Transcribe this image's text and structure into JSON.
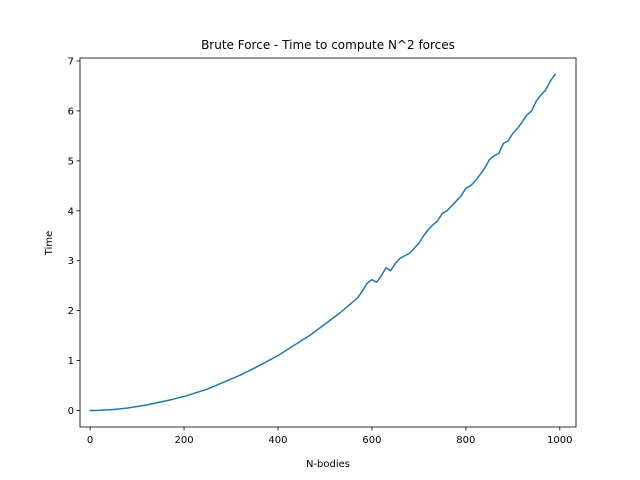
{
  "chart_data": {
    "type": "line",
    "title": "Brute Force - Time to compute N^2 forces",
    "xlabel": "N-bodies",
    "ylabel": "Time",
    "xlim": [
      -21.5,
      1034.5
    ],
    "ylim": [
      -0.33,
      7.06
    ],
    "x_ticks": [
      0,
      200,
      400,
      600,
      800,
      1000
    ],
    "y_ticks": [
      0,
      1,
      2,
      3,
      4,
      5,
      6,
      7
    ],
    "grid": false,
    "legend": "none",
    "line_color": "#1f77b4",
    "series": [
      {
        "x": [
          0,
          10,
          20,
          30,
          40,
          50,
          60,
          70,
          80,
          90,
          100,
          110,
          120,
          130,
          140,
          150,
          160,
          170,
          180,
          190,
          200,
          210,
          220,
          230,
          240,
          250,
          260,
          270,
          280,
          290,
          300,
          310,
          320,
          330,
          340,
          350,
          360,
          370,
          380,
          390,
          400,
          410,
          420,
          430,
          440,
          450,
          460,
          470,
          480,
          490,
          500,
          510,
          520,
          530,
          540,
          550,
          560,
          570,
          580,
          590,
          600,
          610,
          620,
          630,
          640,
          650,
          660,
          670,
          680,
          690,
          700,
          710,
          720,
          730,
          740,
          750,
          760,
          770,
          780,
          790,
          800,
          810,
          820,
          830,
          840,
          850,
          860,
          870,
          880,
          890,
          900,
          910,
          920,
          930,
          940,
          950,
          960,
          970,
          980,
          990
        ],
        "values": [
          0.0,
          0.0,
          0.005,
          0.01,
          0.015,
          0.02,
          0.03,
          0.04,
          0.05,
          0.065,
          0.08,
          0.095,
          0.11,
          0.13,
          0.15,
          0.17,
          0.19,
          0.21,
          0.235,
          0.26,
          0.28,
          0.31,
          0.34,
          0.37,
          0.4,
          0.43,
          0.47,
          0.51,
          0.55,
          0.59,
          0.63,
          0.67,
          0.71,
          0.76,
          0.8,
          0.85,
          0.9,
          0.95,
          1.0,
          1.05,
          1.1,
          1.16,
          1.22,
          1.28,
          1.34,
          1.4,
          1.46,
          1.52,
          1.59,
          1.66,
          1.73,
          1.8,
          1.87,
          1.94,
          2.02,
          2.1,
          2.18,
          2.26,
          2.4,
          2.55,
          2.62,
          2.57,
          2.7,
          2.86,
          2.8,
          2.95,
          3.05,
          3.1,
          3.15,
          3.25,
          3.35,
          3.5,
          3.62,
          3.72,
          3.8,
          3.95,
          4.0,
          4.1,
          4.2,
          4.3,
          4.45,
          4.5,
          4.6,
          4.72,
          4.85,
          5.02,
          5.1,
          5.15,
          5.35,
          5.4,
          5.55,
          5.65,
          5.78,
          5.92,
          6.0,
          6.2,
          6.32,
          6.42,
          6.6,
          6.73
        ]
      }
    ]
  }
}
